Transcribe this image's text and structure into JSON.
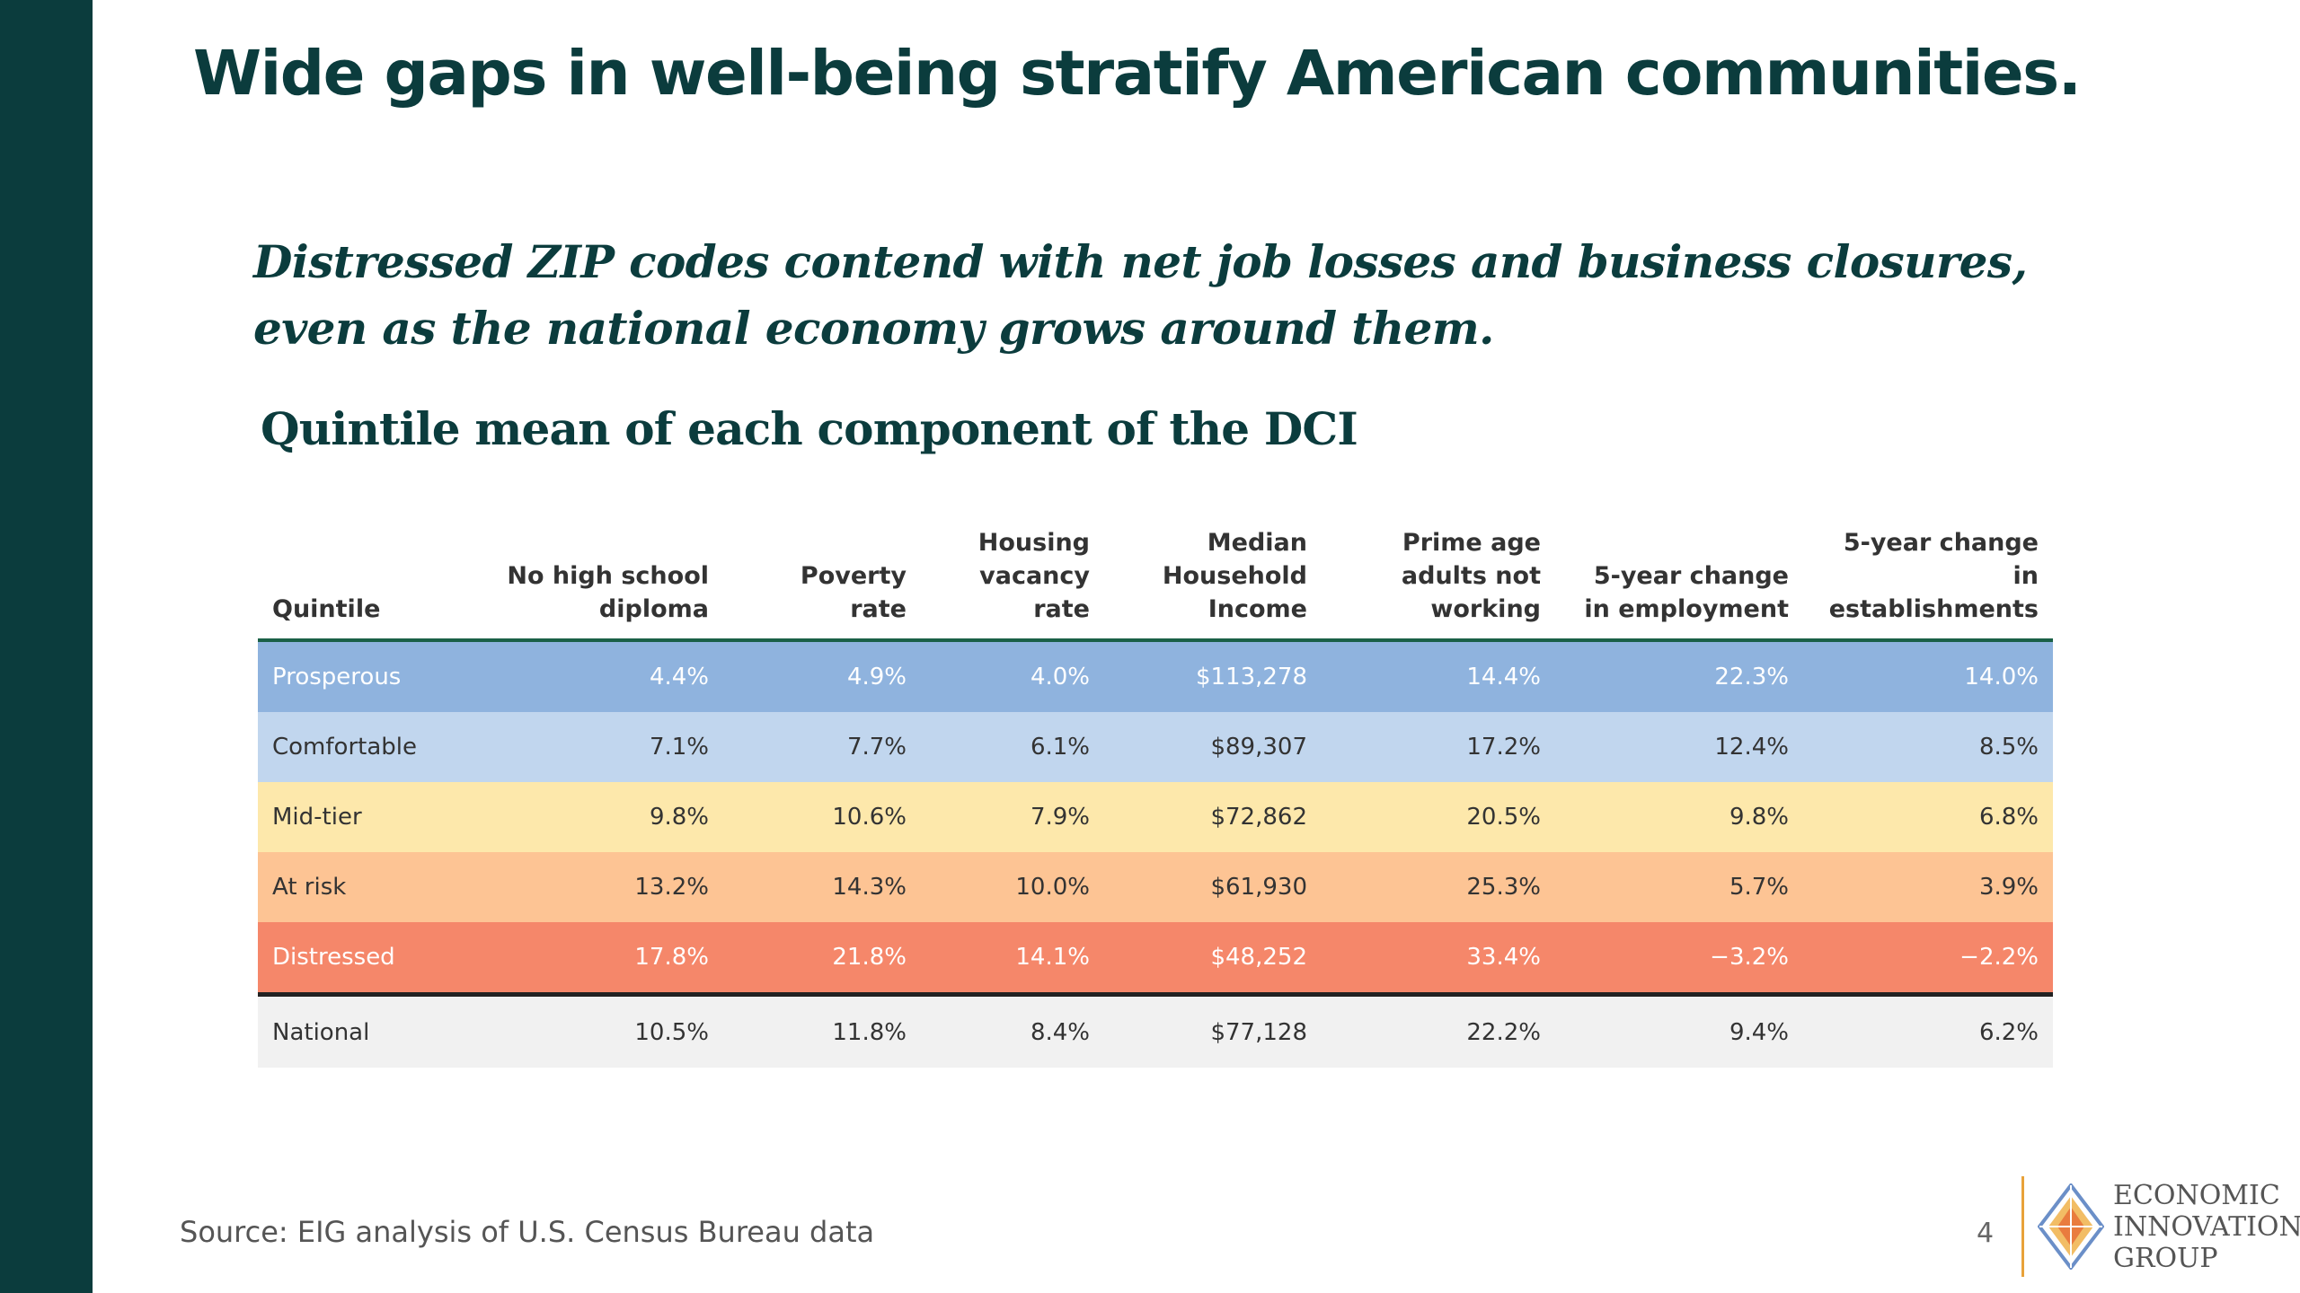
{
  "slide": {
    "title": "Wide gaps in well-being stratify American communities.",
    "subtitle": "Distressed ZIP codes contend with net job losses and business closures, even as the national economy grows around them.",
    "table_title": "Quintile mean of each component of the DCI",
    "source": "Source: EIG analysis of U.S. Census Bureau data",
    "page_number": "4"
  },
  "logo": {
    "lines": [
      "ECONOMIC",
      "INNOVATION",
      "GROUP"
    ],
    "icon": "eig-diamond-logo-icon"
  },
  "table": {
    "headers": [
      "Quintile",
      "No high school diploma",
      "Poverty rate",
      "Housing vacancy rate",
      "Median Household Income",
      "Prime age adults not working",
      "5-year change in employment",
      "5-year change in establishments"
    ],
    "rows": [
      {
        "cells": [
          "Prosperous",
          "4.4%",
          "4.9%",
          "4.0%",
          "$113,278",
          "14.4%",
          "22.3%",
          "14.0%"
        ],
        "bg": "#8fb3de",
        "text_color": "#ffffff"
      },
      {
        "cells": [
          "Comfortable",
          "7.1%",
          "7.7%",
          "6.1%",
          "$89,307",
          "17.2%",
          "12.4%",
          "8.5%"
        ],
        "bg": "#c1d6ee",
        "text_color": "#333333"
      },
      {
        "cells": [
          "Mid-tier",
          "9.8%",
          "10.6%",
          "7.9%",
          "$72,862",
          "20.5%",
          "9.8%",
          "6.8%"
        ],
        "bg": "#fde8ab",
        "text_color": "#333333"
      },
      {
        "cells": [
          "At risk",
          "13.2%",
          "14.3%",
          "10.0%",
          "$61,930",
          "25.3%",
          "5.7%",
          "3.9%"
        ],
        "bg": "#fdc494",
        "text_color": "#333333"
      },
      {
        "cells": [
          "Distressed",
          "17.8%",
          "21.8%",
          "14.1%",
          "$48,252",
          "33.4%",
          "−3.2%",
          "−2.2%"
        ],
        "bg": "#f5876a",
        "text_color": "#ffffff"
      },
      {
        "cells": [
          "National",
          "10.5%",
          "11.8%",
          "8.4%",
          "$77,128",
          "22.2%",
          "9.4%",
          "6.2%"
        ],
        "bg": "#f1f1f1",
        "text_color": "#333333"
      }
    ]
  },
  "colors": {
    "accent_dark_teal": "#0b3c3d",
    "header_rule": "#1a6047",
    "logo_divider": "#e8a23a"
  }
}
